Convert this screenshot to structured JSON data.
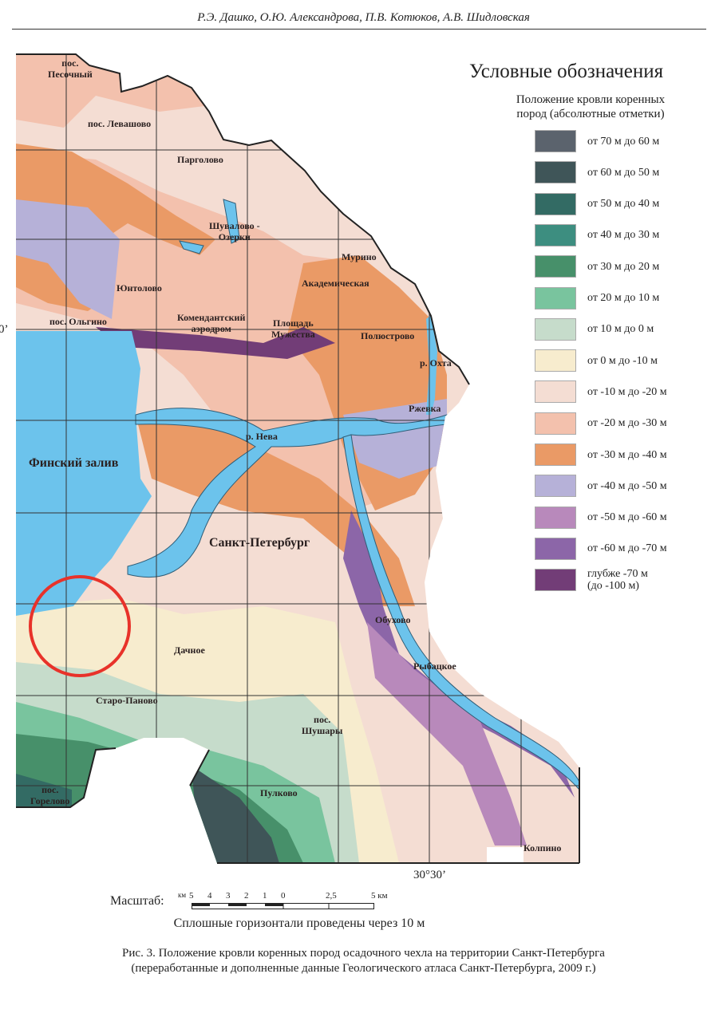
{
  "header": {
    "authors": "Р.Э. Дашко, О.Ю. Александрова, П.В. Котюков, А.В. Шидловская"
  },
  "map": {
    "coordinates": {
      "longitude": "30°30’",
      "latitude_partial": "0’"
    },
    "places": {
      "pesochny_1": "пос.",
      "pesochny_2": "Песочный",
      "levashovo": "пос. Левашово",
      "pargolovo": "Парголово",
      "shuvalovo_1": "Шувалово -",
      "shuvalovo_2": "Озерки",
      "murino": "Мурино",
      "akademicheskaya": "Академическая",
      "yuntolovo": "Юнтолово",
      "olgino": "пос. Ольгино",
      "komendantsky_1": "Комендантский",
      "komendantsky_2": "аэродром",
      "muzhestva_1": "Площадь",
      "muzhestva_2": "Мужества",
      "polyustrovo": "Полюстрово",
      "okhta": "р. Охта",
      "rzhevka": "Ржевка",
      "neva": "р. Нева",
      "gulf": "Финский залив",
      "spb": "Санкт-Петербург",
      "obukhovo": "Обухово",
      "dachnoe": "Дачное",
      "rybatskoe": "Рыбацкое",
      "staro_panovo": "Старо-Паново",
      "shushary_1": "пос.",
      "shushary_2": "Шушары",
      "gorelovo_1": "пос.",
      "gorelovo_2": "Горелово",
      "pulkovo": "Пулково",
      "kolpino": "Колпино"
    },
    "highlight_color": "#e8322a",
    "water_color": "#6cc3ec"
  },
  "legend": {
    "title": "Условные обозначения",
    "subtitle_1": "Положение кровли коренных",
    "subtitle_2": "пород (абсолютные отметки)",
    "items": [
      {
        "label": "от 70 м до 60 м",
        "color": "#5b636d"
      },
      {
        "label": "от 60 м до 50 м",
        "color": "#3f5558"
      },
      {
        "label": "от 50 м до 40 м",
        "color": "#336b64"
      },
      {
        "label": "от 40 м до 30 м",
        "color": "#3d8e80"
      },
      {
        "label": "от 30 м до 20 м",
        "color": "#47906a"
      },
      {
        "label": "от 20 м до 10 м",
        "color": "#79c49e"
      },
      {
        "label": "от 10 м до 0 м",
        "color": "#c6dccb"
      },
      {
        "label": "от 0 м до -10 м",
        "color": "#f7ecce"
      },
      {
        "label": "от -10 м до -20 м",
        "color": "#f4ddd3"
      },
      {
        "label": "от -20 м до -30 м",
        "color": "#f3c1ad"
      },
      {
        "label": "от -30 м до -40 м",
        "color": "#ea9a66"
      },
      {
        "label": "от -40 м до -50 м",
        "color": "#b6b1d8"
      },
      {
        "label": "от -50 м до -60 м",
        "color": "#b889bb"
      },
      {
        "label": "от -60 м до -70 м",
        "color": "#8c66a8"
      },
      {
        "label": "глубже -70 м",
        "label_2": "(до -100 м)",
        "color": "#723d77"
      }
    ]
  },
  "scale": {
    "label": "Масштаб:",
    "unit_left": "км",
    "ticks": [
      "5",
      "4",
      "3",
      "2",
      "1",
      "0",
      "2,5",
      "5 км"
    ],
    "note": "Сплошные горизонтали проведены через 10 м"
  },
  "caption": {
    "line_1": "Рис. 3. Положение кровли коренных пород осадочного чехла на территории Санкт-Петербурга",
    "line_2": "(переработанные и дополненные данные Геологического атласа Санкт-Петербурга, 2009 г.)"
  }
}
